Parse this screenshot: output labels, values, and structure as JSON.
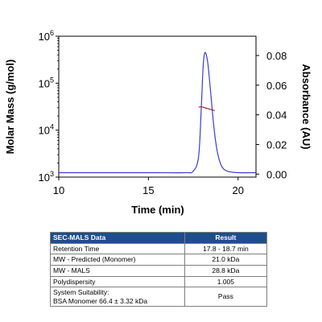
{
  "chart_data": {
    "type": "line",
    "xlabel": "Time (min)",
    "xlim": [
      10,
      21
    ],
    "xticks": [
      10,
      15,
      20
    ],
    "y_left": {
      "label": "Molar Mass (g/mol)",
      "scale": "log",
      "lim": [
        1000,
        1000000
      ],
      "ticks": [
        {
          "base": "10",
          "exp": "3"
        },
        {
          "base": "10",
          "exp": "4"
        },
        {
          "base": "10",
          "exp": "5"
        },
        {
          "base": "10",
          "exp": "6"
        }
      ]
    },
    "y_right": {
      "label": "Absorbance (AU)",
      "lim": [
        -0.002,
        0.093
      ],
      "ticks": [
        "0.00",
        "0.02",
        "0.04",
        "0.06",
        "0.08"
      ]
    },
    "series": [
      {
        "axis": "right",
        "color": "#3b3bd6",
        "x": [
          10,
          15,
          17,
          17.5,
          17.8,
          17.95,
          18.05,
          18.15,
          18.3,
          18.45,
          18.6,
          18.75,
          18.9,
          19.1,
          19.4,
          20,
          21
        ],
        "y": [
          0.001,
          0.001,
          0.001,
          0.002,
          0.012,
          0.045,
          0.072,
          0.082,
          0.076,
          0.058,
          0.038,
          0.022,
          0.012,
          0.005,
          0.002,
          0.001,
          0.001
        ]
      },
      {
        "axis": "left",
        "color": "#a52222",
        "x": [
          17.8,
          18.0,
          18.2,
          18.4,
          18.7
        ],
        "y": [
          31000,
          31200,
          29500,
          28200,
          26000
        ]
      }
    ],
    "grid": false
  },
  "table": {
    "headers": [
      "SEC-MALS Data",
      "Result"
    ],
    "rows": [
      {
        "label": "Retention Time",
        "value": "17.8 - 18.7 min"
      },
      {
        "label": "MW - Predicted (Monomer)",
        "value": "21.0 kDa"
      },
      {
        "label": "MW - MALS",
        "value": "28.8 kDa"
      },
      {
        "label": "Polydispersity",
        "value": "1.005"
      },
      {
        "label": "System Suitability:",
        "label2": "BSA Monomer 66.4 ± 3.32 kDa",
        "value": "Pass"
      }
    ]
  }
}
